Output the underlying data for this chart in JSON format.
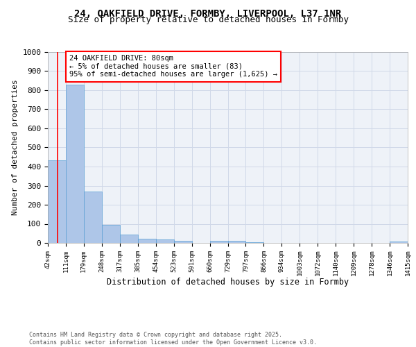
{
  "title1": "24, OAKFIELD DRIVE, FORMBY, LIVERPOOL, L37 1NR",
  "title2": "Size of property relative to detached houses in Formby",
  "xlabel": "Distribution of detached houses by size in Formby",
  "ylabel": "Number of detached properties",
  "bin_edges": [
    42,
    111,
    179,
    248,
    317,
    385,
    454,
    523,
    591,
    660,
    729,
    797,
    866,
    934,
    1003,
    1072,
    1140,
    1209,
    1278,
    1346,
    1415
  ],
  "bar_heights": [
    434,
    830,
    270,
    95,
    45,
    22,
    17,
    10,
    0,
    10,
    10,
    5,
    0,
    0,
    0,
    0,
    0,
    0,
    0,
    7
  ],
  "bar_color": "#aec6e8",
  "bar_edgecolor": "#5a9fd4",
  "grid_color": "#d0d8e8",
  "vline_x": 80,
  "vline_color": "red",
  "annotation_text": "24 OAKFIELD DRIVE: 80sqm\n← 5% of detached houses are smaller (83)\n95% of semi-detached houses are larger (1,625) →",
  "annotation_box_color": "white",
  "annotation_box_edgecolor": "red",
  "footer_text": "Contains HM Land Registry data © Crown copyright and database right 2025.\nContains public sector information licensed under the Open Government Licence v3.0.",
  "ylim": [
    0,
    1000
  ],
  "yticks": [
    0,
    100,
    200,
    300,
    400,
    500,
    600,
    700,
    800,
    900,
    1000
  ],
  "background_color": "#eef2f8",
  "fig_background": "#ffffff"
}
